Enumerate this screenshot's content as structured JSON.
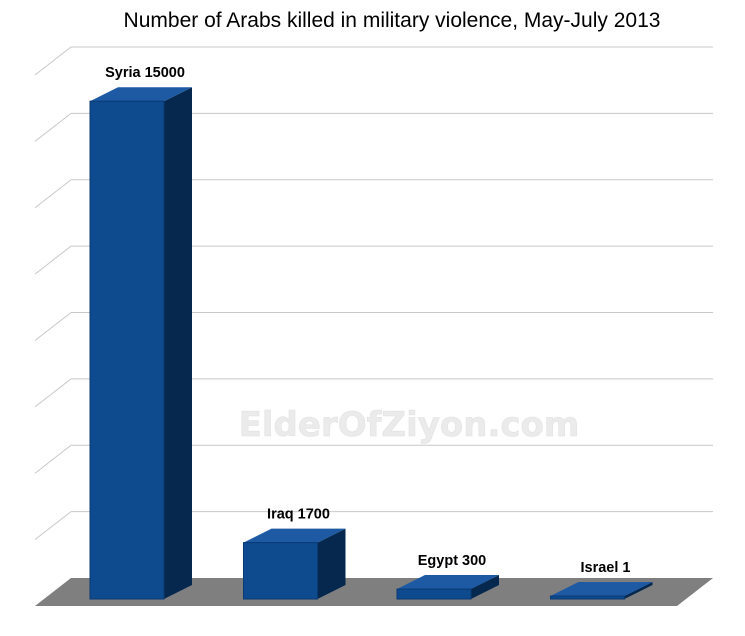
{
  "chart_data": {
    "type": "bar",
    "title": "Number of Arabs killed in military violence, May-July 2013",
    "categories": [
      "Syria",
      "Iraq",
      "Egypt",
      "Israel"
    ],
    "values": [
      15000,
      1700,
      300,
      1
    ],
    "data_labels": [
      "Syria 15000",
      "Iraq 1700",
      "Egypt 300",
      "Israel  1"
    ],
    "xlabel": "",
    "ylabel": "",
    "ylim": [
      0,
      16000
    ],
    "y_ticks_shown": false,
    "grid": true,
    "legend": "none",
    "style": "3d",
    "colors": {
      "bar_front": "#0e4a8e",
      "bar_side": "#06284f",
      "bar_top": "#1d5aa3",
      "floor": "#7f7f7f",
      "grid": "#c8c8c8"
    }
  },
  "watermark": "ElderOfZiyon.com"
}
